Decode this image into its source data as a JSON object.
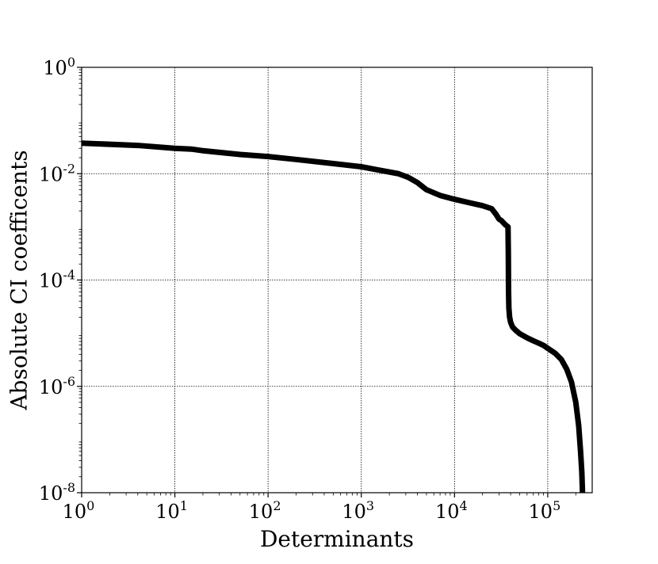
{
  "chart_data": {
    "type": "line",
    "xlabel": "Determinants",
    "ylabel": "Absolute CI coefficents",
    "xscale": "log",
    "yscale": "log",
    "xlim": [
      1,
      300000
    ],
    "ylim": [
      1e-08,
      1
    ],
    "x_ticks": [
      {
        "base": "10",
        "exp": "0",
        "value": 1
      },
      {
        "base": "10",
        "exp": "1",
        "value": 10
      },
      {
        "base": "10",
        "exp": "2",
        "value": 100
      },
      {
        "base": "10",
        "exp": "3",
        "value": 1000
      },
      {
        "base": "10",
        "exp": "4",
        "value": 10000
      },
      {
        "base": "10",
        "exp": "5",
        "value": 100000
      }
    ],
    "y_ticks": [
      {
        "base": "10",
        "exp": "0",
        "value": 1
      },
      {
        "base": "10",
        "exp": "-2",
        "value": 0.01
      },
      {
        "base": "10",
        "exp": "-4",
        "value": 0.0001
      },
      {
        "base": "10",
        "exp": "-6",
        "value": 1e-06
      },
      {
        "base": "10",
        "exp": "-8",
        "value": 1e-08
      }
    ],
    "grid": true,
    "line_color": "#000000",
    "series": [
      {
        "x": [
          1,
          4,
          10,
          15,
          20,
          50,
          100,
          200,
          500,
          1000,
          1500,
          2500,
          3200,
          4000,
          5000,
          7000,
          10000,
          15000,
          20000,
          25000,
          28000,
          30000,
          32000,
          35000,
          37500,
          37800,
          38000,
          38300,
          38600,
          39000,
          40000,
          42000,
          45000,
          50000,
          60000,
          70000,
          80000,
          90000,
          100000,
          120000,
          140000,
          160000,
          180000,
          200000,
          215000,
          225000,
          232000,
          235000,
          236000
        ],
        "y": [
          0.0375,
          0.034,
          0.03,
          0.029,
          0.027,
          0.023,
          0.021,
          0.0185,
          0.0155,
          0.0135,
          0.0118,
          0.01,
          0.0085,
          0.0068,
          0.005,
          0.0039,
          0.0033,
          0.0028,
          0.0025,
          0.0022,
          0.0017,
          0.0014,
          0.0013,
          0.0011,
          0.001,
          0.0003,
          6e-05,
          3e-05,
          2.5e-05,
          2e-05,
          1.6e-05,
          1.3e-05,
          1.15e-05,
          9.8e-06,
          8.2e-06,
          7.2e-06,
          6.5e-06,
          5.9e-06,
          5.2e-06,
          4.2e-06,
          3.2e-06,
          2.1e-06,
          1.2e-06,
          5e-07,
          1.8e-07,
          6e-08,
          2.5e-08,
          1.3e-08,
          1e-08
        ]
      }
    ]
  }
}
